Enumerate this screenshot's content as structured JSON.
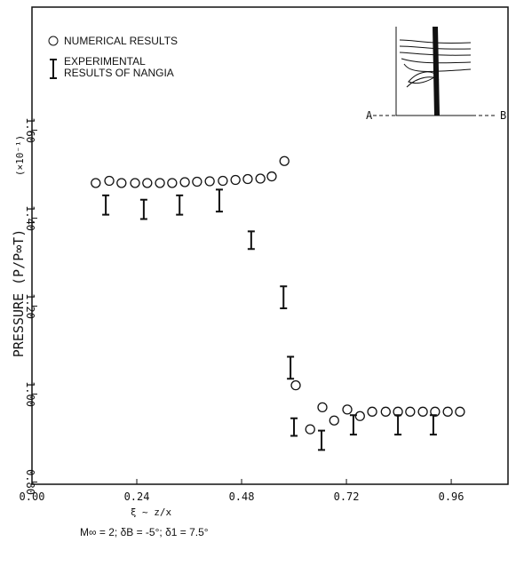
{
  "chart_data": {
    "type": "scatter",
    "xlabel": "ξ ~ z/x",
    "ylabel": "PRESSURE (P/P∞T)",
    "ylabel_scale": "(×10⁻¹)",
    "caption": "M∞ = 2;  δB = -5°;  δ1 = 7.5°",
    "annotations": [
      "A",
      "B"
    ],
    "xlim": [
      0,
      1.09
    ],
    "ylim": [
      0.795,
      1.88
    ],
    "xticks": [
      {
        "value": 0,
        "label": "0.00"
      },
      {
        "value": 0.24,
        "label": "0.24"
      },
      {
        "value": 0.48,
        "label": "0.48"
      },
      {
        "value": 0.72,
        "label": "0.72"
      },
      {
        "value": 0.96,
        "label": "0.96"
      }
    ],
    "yticks": [
      {
        "value": 0.8,
        "label": "0.80"
      },
      {
        "value": 1.0,
        "label": "1.00"
      },
      {
        "value": 1.2,
        "label": "1.20"
      },
      {
        "value": 1.4,
        "label": "1.40"
      },
      {
        "value": 1.6,
        "label": "1.60"
      }
    ],
    "series": [
      {
        "name": "NUMERICAL RESULTS",
        "color": "#111111",
        "marker": "circle",
        "x": [
          0.146,
          0.177,
          0.205,
          0.236,
          0.264,
          0.293,
          0.321,
          0.35,
          0.378,
          0.407,
          0.437,
          0.466,
          0.494,
          0.523,
          0.549,
          0.578,
          0.604,
          0.637,
          0.665,
          0.692,
          0.722,
          0.751,
          0.779,
          0.81,
          0.838,
          0.866,
          0.895,
          0.923,
          0.952,
          0.98
        ],
        "values": [
          1.48,
          1.485,
          1.48,
          1.48,
          1.48,
          1.48,
          1.48,
          1.482,
          1.483,
          1.484,
          1.485,
          1.487,
          1.489,
          1.49,
          1.495,
          1.53,
          1.02,
          0.92,
          0.97,
          0.94,
          0.965,
          0.95,
          0.96,
          0.96,
          0.96,
          0.96,
          0.96,
          0.96,
          0.96,
          0.96
        ]
      },
      {
        "name": "EXPERIMENTAL RESULTS OF NANGIA",
        "color": "#111111",
        "marker": "errorbar",
        "x": [
          0.169,
          0.256,
          0.338,
          0.429,
          0.502,
          0.576,
          0.592,
          0.6,
          0.663,
          0.736,
          0.838,
          0.919
        ],
        "values": [
          1.43,
          1.42,
          1.43,
          1.44,
          1.35,
          1.22,
          1.06,
          0.925,
          0.895,
          0.93,
          0.93,
          0.93
        ],
        "errors": [
          0.022,
          0.022,
          0.022,
          0.025,
          0.02,
          0.025,
          0.025,
          0.02,
          0.022,
          0.022,
          0.022,
          0.022
        ]
      }
    ]
  }
}
